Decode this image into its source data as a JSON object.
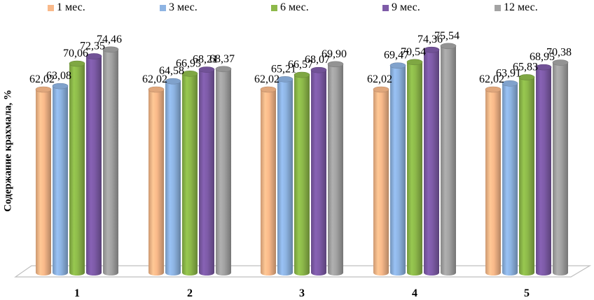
{
  "chart_data": {
    "type": "bar",
    "style": "3d-cylinder",
    "title": "",
    "xlabel": "",
    "ylabel": "Содержание крахмала, %",
    "categories": [
      "1",
      "2",
      "3",
      "4",
      "5"
    ],
    "series": [
      {
        "name": "1 мес.",
        "color": "#F9B98A",
        "values": [
          62.02,
          62.02,
          62.02,
          62.02,
          62.02
        ],
        "labels": [
          "62,02",
          "62,02",
          "62,02",
          "62,02",
          "62,02"
        ]
      },
      {
        "name": "3 мес.",
        "color": "#8EB4E3",
        "values": [
          63.08,
          64.58,
          65.21,
          69.47,
          63.91
        ],
        "labels": [
          "63,08",
          "64,58",
          "65,21",
          "69,47",
          "63,91"
        ]
      },
      {
        "name": "6 мес.",
        "color": "#8DB94A",
        "values": [
          70.06,
          66.95,
          66.57,
          70.54,
          65.83
        ],
        "labels": [
          "70,06",
          "66,95",
          "66,57",
          "70,54",
          "65,83"
        ]
      },
      {
        "name": "9 мес.",
        "color": "#7E5BA8",
        "values": [
          72.35,
          68.21,
          68.07,
          74.36,
          68.95
        ],
        "labels": [
          "72,35",
          "68,21",
          "68,07",
          "74,36",
          "68,95"
        ]
      },
      {
        "name": "12 мес.",
        "color": "#A3A3A3",
        "values": [
          74.46,
          68.37,
          69.9,
          75.54,
          70.38
        ],
        "labels": [
          "74,46",
          "68,37",
          "69,90",
          "75,54",
          "70,38"
        ]
      }
    ],
    "legend_position": "top",
    "grid": false,
    "data_labels": true
  }
}
